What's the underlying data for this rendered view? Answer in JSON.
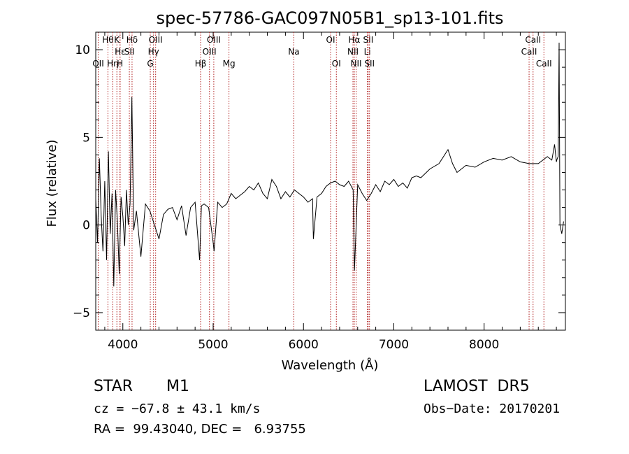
{
  "chart_data": {
    "type": "line",
    "title": "spec-57786-GAC097N05B1_sp13-101.fits",
    "xlabel": "Wavelength (Å)",
    "ylabel": "Flux (relative)",
    "xlim": [
      3700,
      8900
    ],
    "ylim": [
      -6,
      11
    ],
    "xticks": [
      4000,
      5000,
      6000,
      7000,
      8000
    ],
    "yticks": [
      -5,
      0,
      5,
      10
    ],
    "xtick_labels": [
      "4000",
      "5000",
      "6000",
      "7000",
      "8000"
    ],
    "ytick_labels": [
      "−5",
      "0",
      "5",
      "10"
    ],
    "grid": false,
    "series": [
      {
        "color": "#000000",
        "x": [
          3700,
          3720,
          3740,
          3760,
          3780,
          3800,
          3820,
          3840,
          3860,
          3880,
          3900,
          3920,
          3940,
          3960,
          3980,
          4000,
          4020,
          4040,
          4060,
          4080,
          4100,
          4120,
          4150,
          4200,
          4250,
          4300,
          4350,
          4400,
          4450,
          4500,
          4550,
          4600,
          4650,
          4700,
          4750,
          4800,
          4850,
          4870,
          4900,
          4950,
          5000,
          5010,
          5050,
          5100,
          5150,
          5200,
          5250,
          5300,
          5350,
          5400,
          5450,
          5500,
          5550,
          5600,
          5650,
          5700,
          5750,
          5800,
          5850,
          5900,
          6000,
          6050,
          6100,
          6110,
          6150,
          6200,
          6250,
          6300,
          6350,
          6400,
          6450,
          6500,
          6550,
          6565,
          6600,
          6650,
          6700,
          6750,
          6800,
          6850,
          6900,
          6950,
          7000,
          7050,
          7100,
          7150,
          7200,
          7250,
          7300,
          7400,
          7500,
          7600,
          7650,
          7700,
          7800,
          7900,
          8000,
          8100,
          8200,
          8300,
          8400,
          8500,
          8600,
          8700,
          8750,
          8780,
          8800,
          8810,
          8820,
          8830,
          8840,
          8860,
          8880
        ],
        "y": [
          1.5,
          -1.0,
          3.8,
          0.5,
          -1.5,
          2.5,
          -2.0,
          4.2,
          -0.5,
          1.8,
          -3.5,
          2.0,
          0.2,
          -2.8,
          1.6,
          0.5,
          -1.2,
          2.0,
          0.0,
          1.2,
          7.3,
          -0.3,
          0.8,
          -1.8,
          1.2,
          0.8,
          0.0,
          -0.8,
          0.6,
          0.9,
          1.0,
          0.3,
          1.1,
          -0.6,
          1.0,
          1.3,
          -2.0,
          1.1,
          1.2,
          1.0,
          -1.0,
          -1.5,
          1.3,
          1.0,
          1.2,
          1.8,
          1.5,
          1.7,
          1.9,
          2.2,
          2.0,
          2.4,
          1.8,
          1.5,
          2.6,
          2.2,
          1.5,
          1.9,
          1.6,
          2.0,
          1.6,
          1.3,
          1.5,
          -0.8,
          1.6,
          1.8,
          2.2,
          2.4,
          2.5,
          2.3,
          2.2,
          2.5,
          2.0,
          -2.6,
          2.3,
          1.8,
          1.4,
          1.8,
          2.3,
          1.9,
          2.5,
          2.3,
          2.6,
          2.2,
          2.4,
          2.1,
          2.7,
          2.8,
          2.7,
          3.2,
          3.5,
          4.3,
          3.5,
          3.0,
          3.4,
          3.3,
          3.6,
          3.8,
          3.7,
          3.9,
          3.6,
          3.5,
          3.5,
          3.9,
          3.7,
          4.6,
          3.6,
          3.8,
          3.9,
          10.4,
          0.0,
          -0.5,
          0.2
        ]
      }
    ],
    "spectral_lines": [
      {
        "wavelength": 3727,
        "label": "OII",
        "row": 2
      },
      {
        "wavelength": 3835,
        "label": "Hθ",
        "row": 0
      },
      {
        "wavelength": 3889,
        "label": "Hη",
        "row": 2
      },
      {
        "wavelength": 3934,
        "label": "K",
        "row": 0
      },
      {
        "wavelength": 3968,
        "label": "H",
        "row": 2
      },
      {
        "wavelength": 3970,
        "label": "Hε",
        "row": 1
      },
      {
        "wavelength": 4072,
        "label": "SII",
        "row": 1
      },
      {
        "wavelength": 4102,
        "label": "Hδ",
        "row": 0
      },
      {
        "wavelength": 4304,
        "label": "G",
        "row": 2
      },
      {
        "wavelength": 4340,
        "label": "Hγ",
        "row": 1
      },
      {
        "wavelength": 4363,
        "label": "OIII",
        "row": 0
      },
      {
        "wavelength": 4861,
        "label": "Hβ",
        "row": 2
      },
      {
        "wavelength": 4959,
        "label": "OIII",
        "row": 1
      },
      {
        "wavelength": 5007,
        "label": "OIII",
        "row": 0
      },
      {
        "wavelength": 5175,
        "label": "Mg",
        "row": 2
      },
      {
        "wavelength": 5893,
        "label": "Na",
        "row": 1
      },
      {
        "wavelength": 6300,
        "label": "OI",
        "row": 0
      },
      {
        "wavelength": 6364,
        "label": "OI",
        "row": 2
      },
      {
        "wavelength": 6548,
        "label": "NII",
        "row": 1
      },
      {
        "wavelength": 6563,
        "label": "Hα",
        "row": 0
      },
      {
        "wavelength": 6583,
        "label": "NII",
        "row": 2
      },
      {
        "wavelength": 6707,
        "label": "Li",
        "row": 1
      },
      {
        "wavelength": 6717,
        "label": "SII",
        "row": 0
      },
      {
        "wavelength": 6731,
        "label": "SII",
        "row": 2
      },
      {
        "wavelength": 8498,
        "label": "CaII",
        "row": 1
      },
      {
        "wavelength": 8542,
        "label": "CaII",
        "row": 0
      },
      {
        "wavelength": 8662,
        "label": "CaII",
        "row": 2
      }
    ],
    "line_color": "#b22222"
  },
  "info": {
    "object_class": "STAR",
    "subclass": "M1",
    "survey": "LAMOST  DR5",
    "cz": "cz = −67.8 ± 43.1 km/s",
    "obs_date": "Obs−Date: 20170201",
    "coords": "RA =  99.43040, DEC =   6.93755"
  }
}
